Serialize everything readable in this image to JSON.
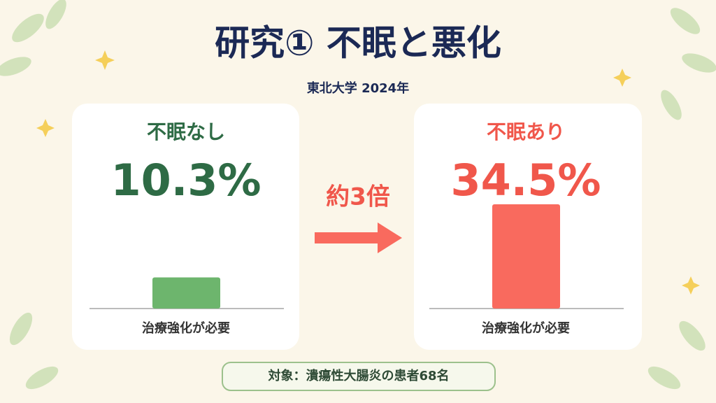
{
  "chart_data": {
    "type": "bar",
    "title": "研究① 不眠と悪化",
    "subtitle": "東北大学 2024年",
    "categories": [
      "不眠なし",
      "不眠あり"
    ],
    "values": [
      10.3,
      34.5
    ],
    "value_labels": [
      "10.3%",
      "34.5%"
    ],
    "colors": [
      "#6db56d",
      "#f96a5e"
    ],
    "notes": [
      "治療強化が必要",
      "治療強化が必要"
    ],
    "annotation": "約3倍",
    "footer": "対象：潰瘍性大腸炎の患者68名"
  }
}
